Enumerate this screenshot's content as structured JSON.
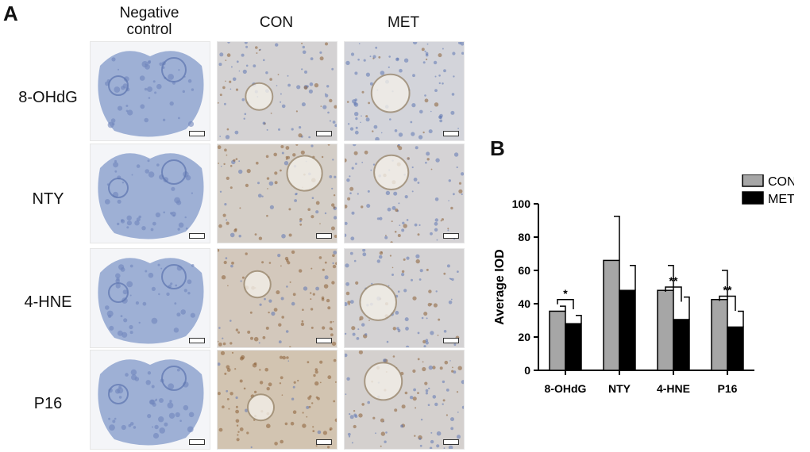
{
  "panel_a": {
    "letter": "A",
    "columns": [
      "Negative\ncontrol",
      "CON",
      "MET"
    ],
    "rows": [
      "8-OHdG",
      "NTY",
      "4-HNE",
      "P16"
    ]
  },
  "panel_b": {
    "letter": "B"
  },
  "colors": {
    "con": "#a6a6a6",
    "met": "#000000",
    "tissue_blue": "#8ea3cf",
    "stain_brown": "#a4825a"
  },
  "chart_data": {
    "type": "bar",
    "categories": [
      "8-OHdG",
      "NTY",
      "4-HNE",
      "P16"
    ],
    "series": [
      {
        "name": "CON",
        "values": [
          35.5,
          66,
          48,
          42.5
        ],
        "error": [
          3,
          26.5,
          15,
          17.5
        ]
      },
      {
        "name": "MET",
        "values": [
          28,
          48,
          30.5,
          26
        ],
        "error": [
          5,
          15,
          13.5,
          9.5
        ]
      }
    ],
    "ylabel": "Average IOD",
    "xlabel": "",
    "ylim": [
      0,
      100
    ],
    "yticks": [
      0,
      20,
      40,
      60,
      80,
      100
    ],
    "significance": [
      "*",
      "",
      "**",
      "**"
    ],
    "legend_position": "top-right",
    "grid": false
  }
}
